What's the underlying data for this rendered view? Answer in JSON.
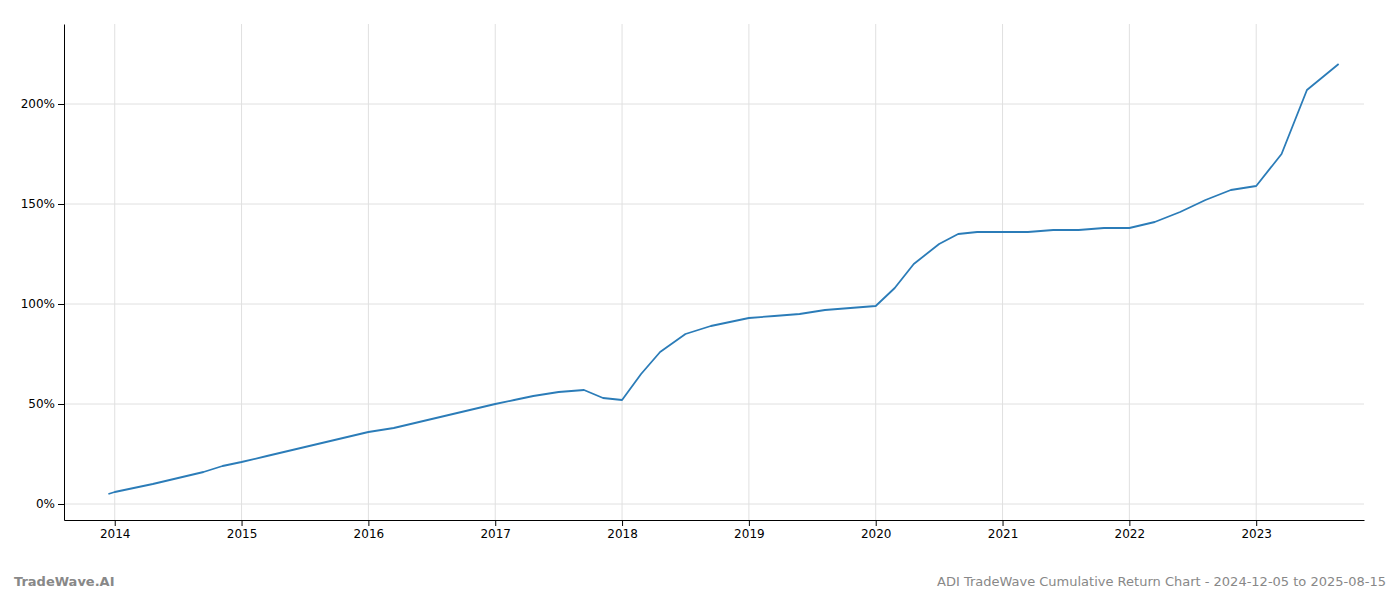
{
  "chart_data": {
    "type": "line",
    "title": "ADI TradeWave Cumulative Return Chart - 2024-12-05 to 2025-08-15",
    "annotations": [
      "TradeWave.AI"
    ],
    "color": "#2b7cb8",
    "grid": true,
    "xlim": [
      2013.6,
      2023.85
    ],
    "ylim": [
      -8,
      240
    ],
    "xticks": [
      2014,
      2015,
      2016,
      2017,
      2018,
      2019,
      2020,
      2021,
      2022,
      2023
    ],
    "yticks": [
      {
        "value": 0,
        "label": "0%"
      },
      {
        "value": 50,
        "label": "50%"
      },
      {
        "value": 100,
        "label": "100%"
      },
      {
        "value": 150,
        "label": "150%"
      },
      {
        "value": 200,
        "label": "200%"
      }
    ],
    "x": [
      2013.95,
      2014.0,
      2014.15,
      2014.3,
      2014.5,
      2014.7,
      2014.85,
      2015.0,
      2015.2,
      2015.4,
      2015.6,
      2015.8,
      2016.0,
      2016.2,
      2016.4,
      2016.6,
      2016.8,
      2017.0,
      2017.15,
      2017.3,
      2017.5,
      2017.7,
      2017.85,
      2018.0,
      2018.15,
      2018.3,
      2018.5,
      2018.7,
      2018.85,
      2019.0,
      2019.2,
      2019.4,
      2019.6,
      2019.8,
      2020.0,
      2020.15,
      2020.3,
      2020.5,
      2020.65,
      2020.8,
      2021.0,
      2021.2,
      2021.4,
      2021.6,
      2021.8,
      2022.0,
      2022.2,
      2022.4,
      2022.6,
      2022.8,
      2023.0,
      2023.2,
      2023.4,
      2023.65
    ],
    "values": [
      5,
      6,
      8,
      10,
      13,
      16,
      19,
      21,
      24,
      27,
      30,
      33,
      36,
      38,
      41,
      44,
      47,
      50,
      52,
      54,
      56,
      57,
      53,
      52,
      65,
      76,
      85,
      89,
      91,
      93,
      94,
      95,
      97,
      98,
      99,
      108,
      120,
      130,
      135,
      136,
      136,
      136,
      137,
      137,
      138,
      138,
      141,
      146,
      152,
      157,
      159,
      175,
      207,
      220
    ]
  }
}
